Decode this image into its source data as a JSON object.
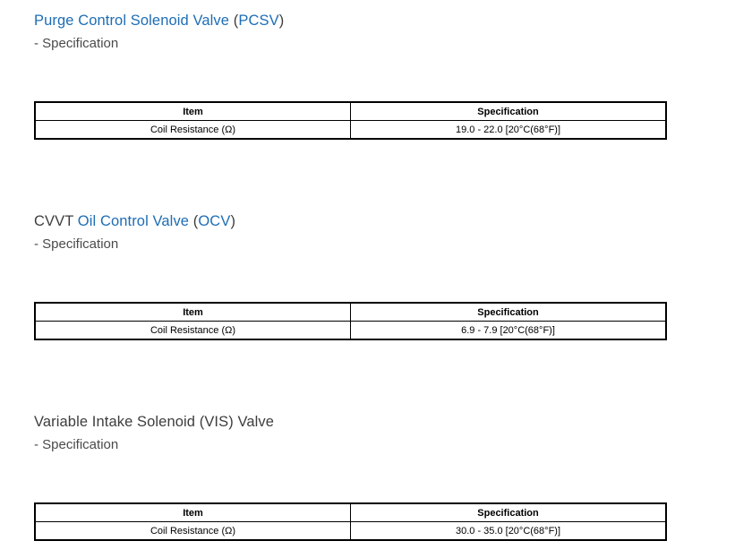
{
  "sections": [
    {
      "title_segments": [
        "Purge Control Solenoid Valve ",
        "(",
        "PCSV",
        ")"
      ],
      "subtitle": "- Specification",
      "table": {
        "headers": [
          "Item",
          "Specification"
        ],
        "rows": [
          {
            "item": "Coil Resistance (Ω)",
            "spec": "19.0 - 22.0 [20°C(68°F)]"
          }
        ]
      }
    },
    {
      "title_segments": [
        "CVVT ",
        "Oil Control Valve ",
        "(",
        "OCV",
        ")"
      ],
      "subtitle": "- Specification",
      "table": {
        "headers": [
          "Item",
          "Specification"
        ],
        "rows": [
          {
            "item": "Coil Resistance (Ω)",
            "spec": "6.9 - 7.9 [20°C(68°F)]"
          }
        ]
      }
    },
    {
      "title_segments": [
        "Variable Intake Solenoid (VIS) Valve"
      ],
      "subtitle": "- Specification",
      "table": {
        "headers": [
          "Item",
          "Specification"
        ],
        "rows": [
          {
            "item": "Coil Resistance (Ω)",
            "spec": "30.0 - 35.0 [20°C(68°F)]"
          }
        ]
      }
    }
  ]
}
